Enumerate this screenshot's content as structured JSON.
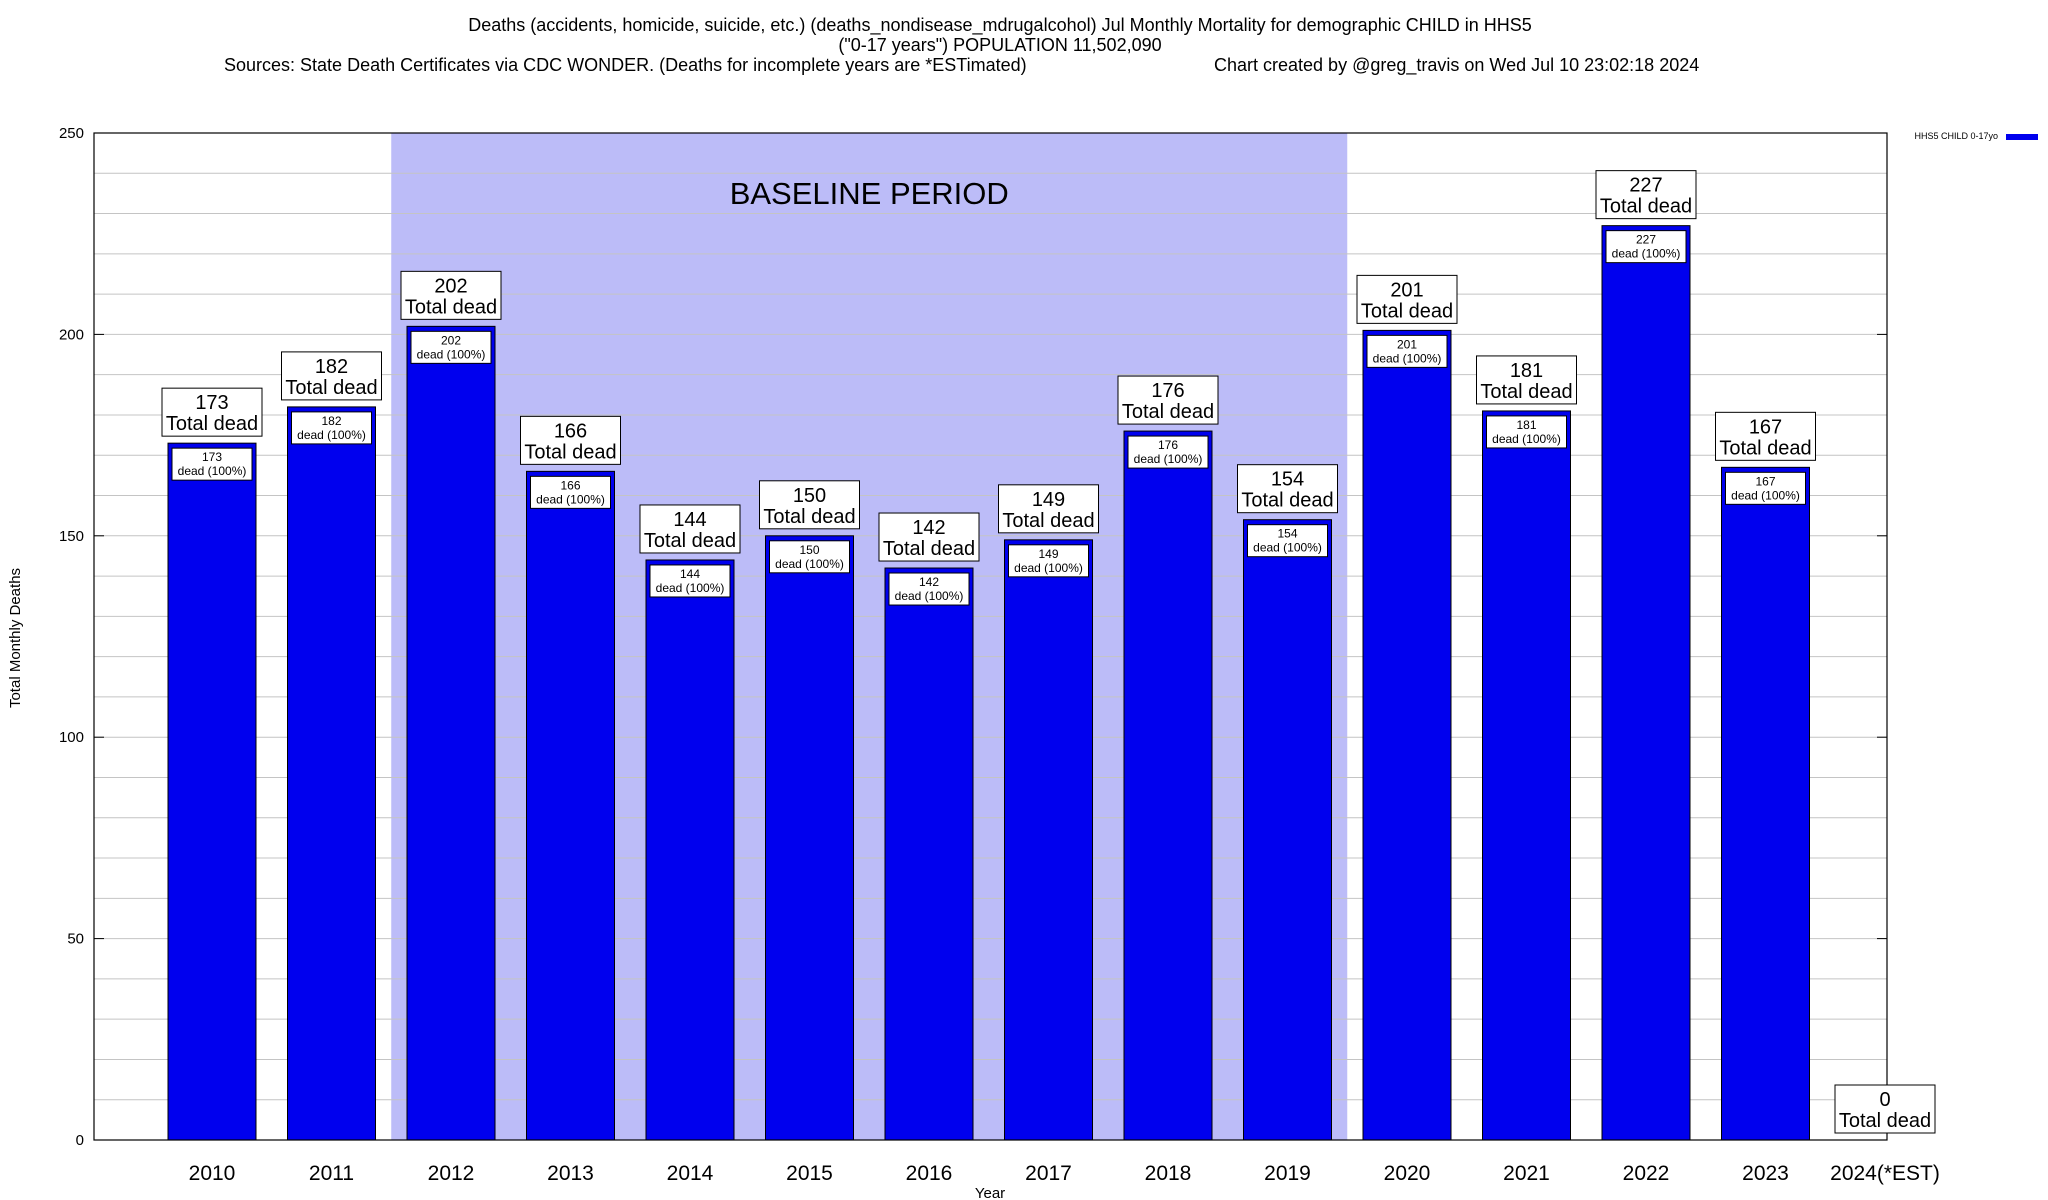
{
  "header": {
    "title_line1": "Deaths (accidents, homicide, suicide, etc.) (deaths_nondisease_mdrugalcohol) Jul Monthly Mortality for demographic CHILD in HHS5",
    "title_line2": "(\"0-17 years\") POPULATION 11,502,090",
    "sources": "Sources: State Death Certificates via CDC WONDER. (Deaths for incomplete years are *ESTimated)",
    "credit": "Chart created by @greg_travis on Wed Jul 10 23:02:18 2024"
  },
  "chart_data": {
    "type": "bar",
    "categories": [
      "2010",
      "2011",
      "2012",
      "2013",
      "2014",
      "2015",
      "2016",
      "2017",
      "2018",
      "2019",
      "2020",
      "2021",
      "2022",
      "2023",
      "2024(*EST)"
    ],
    "series": [
      {
        "name": "HHS5 CHILD 0-17yo",
        "color": "#0000ee",
        "values": [
          173,
          182,
          202,
          166,
          144,
          150,
          142,
          149,
          176,
          154,
          201,
          181,
          227,
          167,
          0
        ]
      }
    ],
    "outer_label_suffix": "Total dead",
    "inner_label_suffix": "dead (100%)",
    "xlabel": "Year",
    "ylabel": "Total Monthly Deaths",
    "ylim": [
      0,
      250
    ],
    "yticks": [
      0,
      50,
      100,
      150,
      200,
      250
    ],
    "grid": "horizontal",
    "legend_position": "top-right",
    "baseline_period": {
      "label": "BASELINE PERIOD",
      "start_category": "2012",
      "end_category": "2019",
      "color": "#bcbcf8"
    }
  }
}
